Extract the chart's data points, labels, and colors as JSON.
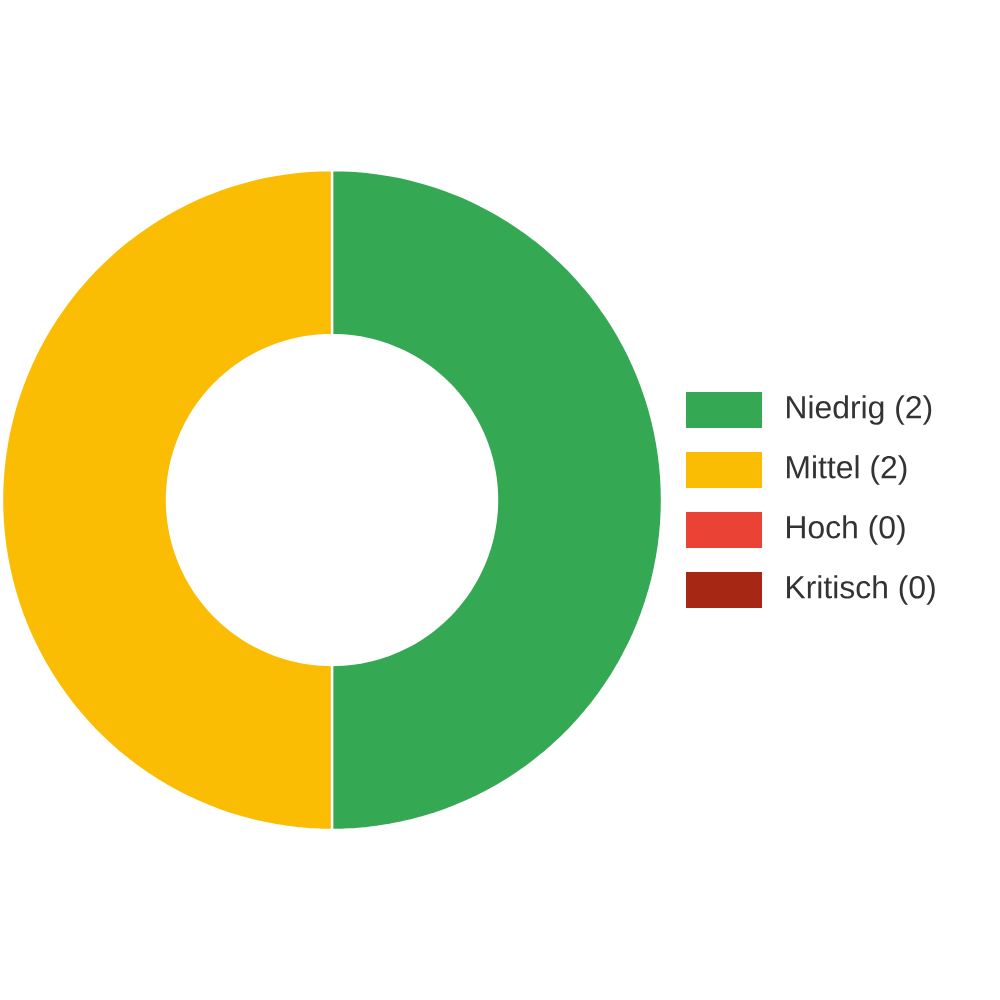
{
  "chart_data": {
    "type": "donut",
    "categories": [
      "Niedrig (2)",
      "Mittel (2)",
      "Hoch (0)",
      "Kritisch (0)"
    ],
    "values": [
      2,
      2,
      0,
      0
    ],
    "colors": [
      "#34a853",
      "#fbbc04",
      "#ea4335",
      "#a52714"
    ],
    "legend": "right"
  }
}
